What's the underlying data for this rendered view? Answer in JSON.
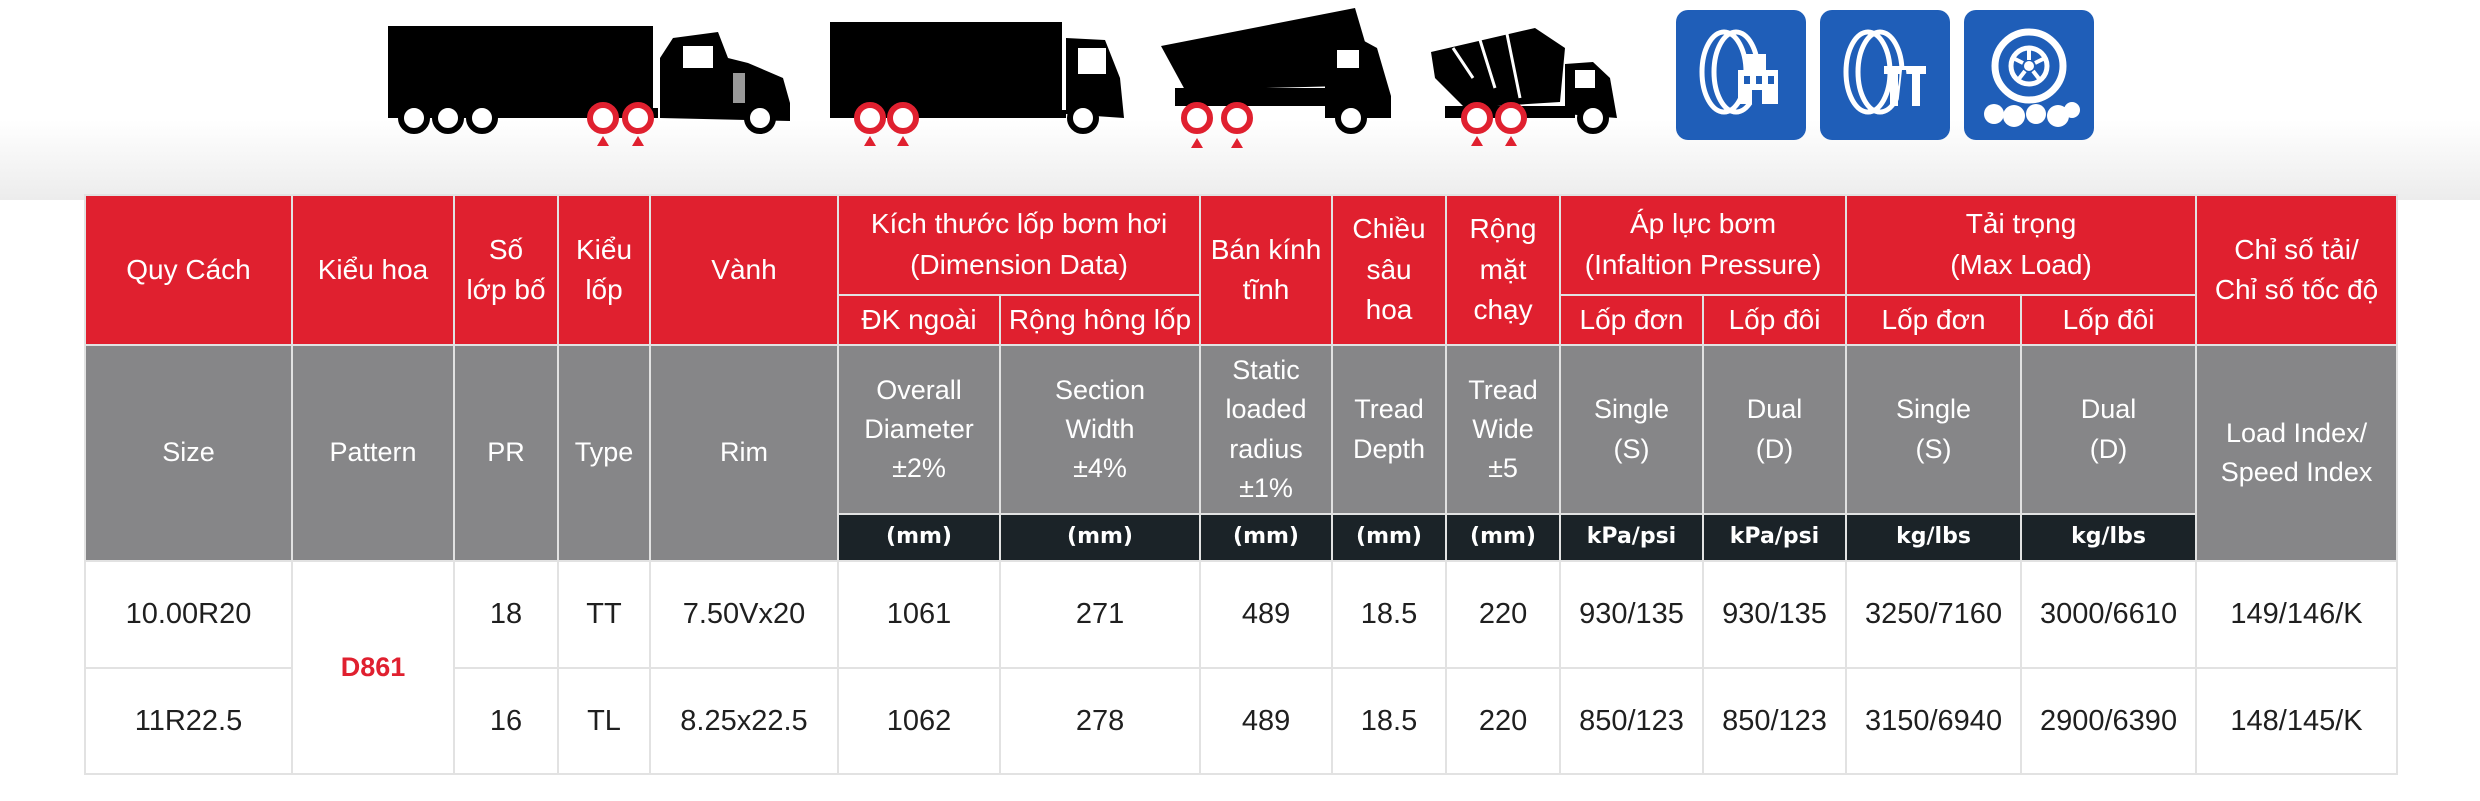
{
  "icons": {
    "vehicles": [
      "semi-truck-icon",
      "box-truck-icon",
      "dump-truck-icon",
      "mixer-truck-icon"
    ],
    "badges": [
      "tire-urban-icon",
      "tire-highway-icon",
      "tire-offroad-icon"
    ],
    "colors": {
      "header_red": "#e0202f",
      "header_gray": "#868688",
      "unit_dark": "#1b2328",
      "badge_blue": "#1f5eb8"
    }
  },
  "header_vn": {
    "size": "Quy Cách",
    "pattern": "Kiểu hoa",
    "pr": [
      "Số",
      "lớp bố"
    ],
    "type": [
      "Kiểu",
      "lốp"
    ],
    "rim": "Vành",
    "dimension": [
      "Kích thước lốp bơm hơi",
      "(Dimension Data)"
    ],
    "overall_diameter": "ĐK ngoài",
    "section_width": "Rộng hông lốp",
    "static_radius": [
      "Bán kính",
      "tĩnh"
    ],
    "tread_depth": [
      "Chiều",
      "sâu",
      "hoa"
    ],
    "tread_wide": [
      "Rộng",
      "mặt",
      "chạy"
    ],
    "pressure": [
      "Áp lực bơm",
      "(Infaltion Pressure)"
    ],
    "pressure_single": "Lốp đơn",
    "pressure_dual": "Lốp đôi",
    "load": [
      "Tải trọng",
      "(Max Load)"
    ],
    "load_single": "Lốp đơn",
    "load_dual": "Lốp đôi",
    "index": [
      "Chỉ số tải/",
      "Chỉ số tốc độ"
    ]
  },
  "header_en": {
    "size": "Size",
    "pattern": "Pattern",
    "pr": "PR",
    "type": "Type",
    "rim": "Rim",
    "overall_diameter": [
      "Overall",
      "Diameter",
      "±2%"
    ],
    "section_width": [
      "Section",
      "Width",
      "±4%"
    ],
    "static_radius": [
      "Static",
      "loaded",
      "radius",
      "±1%"
    ],
    "tread_depth": [
      "Tread",
      "Depth"
    ],
    "tread_wide": [
      "Tread",
      "Wide",
      "±5"
    ],
    "pressure_single": [
      "Single",
      "(S)"
    ],
    "pressure_dual": [
      "Dual",
      "(D)"
    ],
    "load_single": [
      "Single",
      "(S)"
    ],
    "load_dual": [
      "Dual",
      "(D)"
    ],
    "index": [
      "Load Index/",
      "Speed Index"
    ]
  },
  "units": [
    "(mm)",
    "(mm)",
    "(mm)",
    "(mm)",
    "(mm)",
    "kPa/psi",
    "kPa/psi",
    "kg/lbs",
    "kg/lbs"
  ],
  "pattern_value": "D861",
  "rows": [
    {
      "size": "10.00R20",
      "pr": "18",
      "type": "TT",
      "rim": "7.50Vx20",
      "od": "1061",
      "sw": "271",
      "slr": "489",
      "td": "18.5",
      "tw": "220",
      "ps": "930/135",
      "pd": "930/135",
      "ls": "3250/7160",
      "ld": "3000/6610",
      "idx": "149/146/K"
    },
    {
      "size": "11R22.5",
      "pr": "16",
      "type": "TL",
      "rim": "8.25x22.5",
      "od": "1062",
      "sw": "278",
      "slr": "489",
      "td": "18.5",
      "tw": "220",
      "ps": "850/123",
      "pd": "850/123",
      "ls": "3150/6940",
      "ld": "2900/6390",
      "idx": "148/145/K"
    }
  ]
}
